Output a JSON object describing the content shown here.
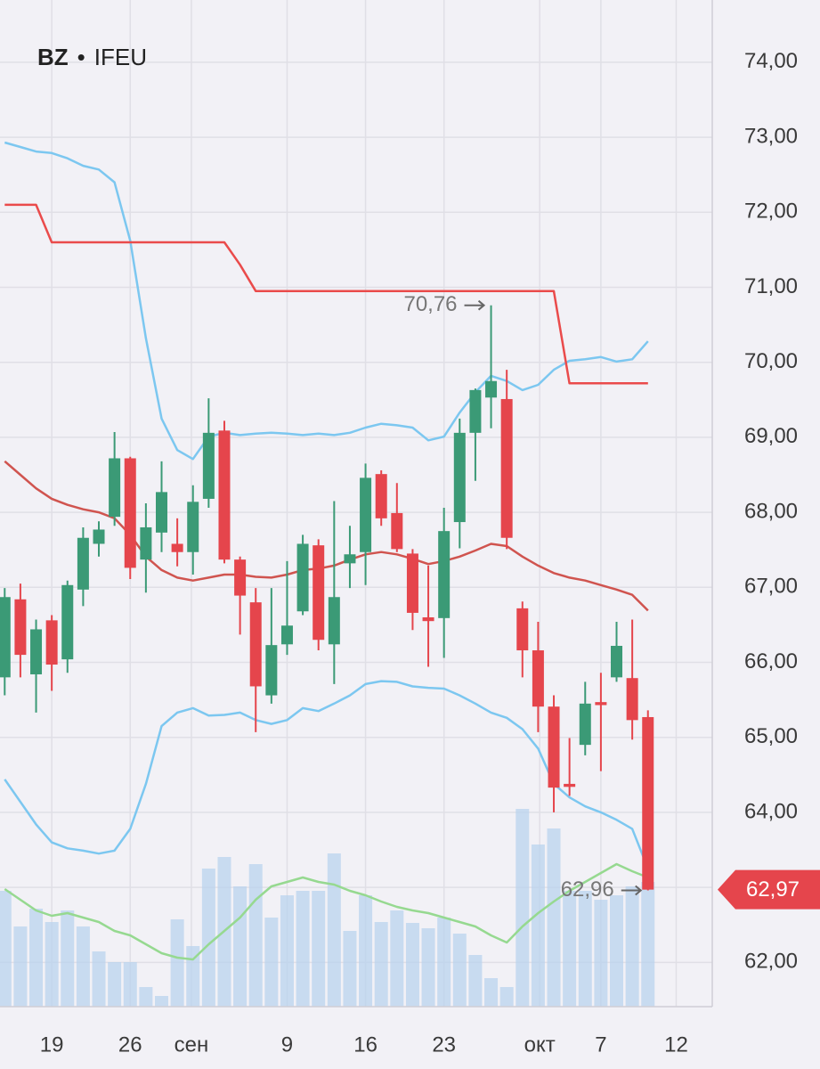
{
  "chart_data": {
    "type": "candlestick",
    "title_symbol": "BZ",
    "title_separator": "•",
    "title_exchange": "IFEU",
    "x": [
      0,
      1,
      2,
      3,
      4,
      5,
      6,
      7,
      8,
      9,
      10,
      11,
      12,
      13,
      14,
      15,
      16,
      17,
      18,
      19,
      20,
      21,
      22,
      23,
      24,
      25,
      26,
      27,
      28,
      29,
      30,
      31,
      32,
      33,
      34,
      35,
      36,
      37,
      38,
      39,
      40,
      41
    ],
    "open": [
      65.8,
      66.84,
      65.84,
      66.56,
      66.04,
      66.97,
      67.58,
      67.94,
      68.72,
      67.37,
      67.73,
      67.58,
      67.47,
      68.18,
      69.09,
      67.37,
      66.8,
      65.56,
      66.24,
      66.68,
      67.56,
      66.24,
      67.32,
      67.47,
      68.51,
      67.99,
      67.45,
      66.6,
      66.59,
      67.87,
      69.06,
      69.53,
      69.51,
      66.72,
      66.16,
      65.41,
      64.38,
      64.9,
      65.47,
      65.8,
      65.79,
      65.27
    ],
    "high": [
      66.99,
      67.05,
      66.57,
      66.63,
      67.09,
      67.8,
      67.88,
      69.07,
      68.74,
      68.12,
      68.68,
      67.92,
      68.36,
      69.52,
      69.22,
      67.41,
      66.99,
      66.99,
      67.35,
      67.7,
      67.64,
      68.15,
      67.82,
      68.65,
      68.56,
      68.39,
      67.51,
      67.29,
      68.06,
      69.25,
      69.65,
      70.76,
      69.9,
      66.81,
      66.54,
      65.56,
      64.99,
      65.74,
      65.86,
      66.54,
      66.57,
      65.36
    ],
    "low": [
      65.56,
      65.8,
      65.33,
      65.62,
      65.86,
      66.75,
      67.41,
      67.82,
      67.11,
      66.93,
      67.47,
      67.28,
      67.17,
      68.06,
      67.32,
      66.37,
      65.07,
      65.45,
      66.1,
      66.63,
      66.16,
      65.71,
      66.99,
      67.03,
      67.82,
      67.47,
      66.43,
      65.94,
      66.06,
      67.52,
      68.42,
      69.12,
      67.51,
      65.8,
      65.07,
      64.0,
      64.22,
      64.76,
      64.55,
      65.74,
      64.97,
      62.96
    ],
    "close": [
      66.87,
      66.1,
      66.44,
      65.97,
      67.03,
      67.66,
      67.77,
      68.72,
      67.26,
      67.8,
      68.27,
      67.47,
      68.14,
      69.06,
      67.37,
      66.89,
      65.68,
      66.23,
      66.49,
      67.58,
      66.3,
      66.87,
      67.44,
      68.46,
      67.92,
      67.51,
      66.66,
      66.55,
      67.75,
      69.06,
      69.63,
      69.75,
      67.66,
      66.16,
      65.41,
      64.33,
      64.34,
      65.45,
      65.43,
      66.22,
      65.23,
      62.97
    ],
    "up_color": "#3b9a76",
    "down_color": "#e5454c",
    "series": [
      {
        "color": "#7cc7f0",
        "values": [
          72.93,
          72.87,
          72.81,
          72.79,
          72.72,
          72.62,
          72.57,
          72.4,
          71.62,
          70.32,
          69.25,
          68.83,
          68.71,
          69.01,
          69.06,
          69.03,
          69.05,
          69.06,
          69.05,
          69.03,
          69.05,
          69.03,
          69.06,
          69.13,
          69.18,
          69.16,
          69.13,
          68.96,
          69.01,
          69.33,
          69.6,
          69.82,
          69.75,
          69.63,
          69.7,
          69.9,
          70.02,
          70.04,
          70.07,
          70.01,
          70.04,
          70.28
        ]
      },
      {
        "color": "#7cc7f0",
        "values": [
          64.44,
          64.14,
          63.84,
          63.6,
          63.52,
          63.49,
          63.45,
          63.49,
          63.78,
          64.38,
          65.15,
          65.33,
          65.39,
          65.29,
          65.3,
          65.33,
          65.23,
          65.18,
          65.23,
          65.39,
          65.35,
          65.45,
          65.56,
          65.71,
          65.75,
          65.74,
          65.68,
          65.66,
          65.65,
          65.56,
          65.45,
          65.33,
          65.26,
          65.11,
          64.85,
          64.38,
          64.2,
          64.08,
          64.0,
          63.9,
          63.78,
          63.25
        ]
      },
      {
        "color": "#d0544f",
        "values": [
          68.68,
          68.5,
          68.32,
          68.18,
          68.1,
          68.04,
          68.0,
          67.92,
          67.7,
          67.41,
          67.23,
          67.13,
          67.09,
          67.13,
          67.17,
          67.17,
          67.14,
          67.13,
          67.17,
          67.23,
          67.25,
          67.29,
          67.37,
          67.44,
          67.47,
          67.44,
          67.38,
          67.31,
          67.35,
          67.41,
          67.49,
          67.58,
          67.55,
          67.41,
          67.29,
          67.19,
          67.13,
          67.09,
          67.03,
          66.97,
          66.9,
          66.69
        ]
      },
      {
        "color": "#ea4b4b",
        "values": [
          72.1,
          72.1,
          72.1,
          71.6,
          71.6,
          71.6,
          71.6,
          71.6,
          71.6,
          71.6,
          71.6,
          71.6,
          71.6,
          71.6,
          71.6,
          71.3,
          70.95,
          70.95,
          70.95,
          70.95,
          70.95,
          70.95,
          70.95,
          70.95,
          70.95,
          70.95,
          70.95,
          70.95,
          70.95,
          70.95,
          70.95,
          70.95,
          70.95,
          70.95,
          70.95,
          70.95,
          69.72,
          69.72,
          69.72,
          69.72,
          69.72,
          69.72
        ]
      }
    ],
    "volume": {
      "color": "#b9d3ee",
      "values": [
        130,
        90,
        110,
        95,
        108,
        90,
        62,
        50,
        50,
        22,
        12,
        98,
        68,
        155,
        168,
        135,
        160,
        100,
        125,
        130,
        130,
        172,
        85,
        125,
        95,
        108,
        94,
        88,
        100,
        82,
        58,
        32,
        22,
        222,
        182,
        200,
        130,
        130,
        120,
        125,
        135,
        140
      ]
    },
    "volume_ma": {
      "color": "#96d990",
      "values": [
        132,
        120,
        108,
        102,
        105,
        100,
        95,
        85,
        80,
        70,
        60,
        55,
        53,
        70,
        85,
        100,
        120,
        135,
        140,
        145,
        140,
        137,
        130,
        125,
        118,
        112,
        108,
        105,
        100,
        95,
        90,
        80,
        72,
        90,
        105,
        118,
        130,
        140,
        150,
        160,
        152,
        145
      ]
    },
    "vlim": [
      0,
      240
    ],
    "xlim": [
      -0.3,
      45.1
    ],
    "xticks": [
      {
        "value": 3,
        "label": "19"
      },
      {
        "value": 8,
        "label": "26"
      },
      {
        "value": 11.9,
        "label": "сен"
      },
      {
        "value": 18,
        "label": "9"
      },
      {
        "value": 23,
        "label": "16"
      },
      {
        "value": 28,
        "label": "23"
      },
      {
        "value": 34.1,
        "label": "окт"
      },
      {
        "value": 38,
        "label": "7"
      },
      {
        "value": 42.8,
        "label": "12"
      }
    ],
    "ylim": [
      61.41,
      74.83
    ],
    "yticks": [
      {
        "value": 62,
        "label": "62,00"
      },
      {
        "value": 63,
        "label": "63,00"
      },
      {
        "value": 64,
        "label": "64,00"
      },
      {
        "value": 65,
        "label": "65,00"
      },
      {
        "value": 66,
        "label": "66,00"
      },
      {
        "value": 67,
        "label": "67,00"
      },
      {
        "value": 68,
        "label": "68,00"
      },
      {
        "value": 69,
        "label": "69,00"
      },
      {
        "value": 70,
        "label": "70,00"
      },
      {
        "value": 71,
        "label": "71,00"
      },
      {
        "value": 72,
        "label": "72,00"
      },
      {
        "value": 73,
        "label": "73,00"
      },
      {
        "value": 74,
        "label": "74,00"
      }
    ],
    "grid": true,
    "annotations": [
      {
        "text": "70,76",
        "value": 70.76,
        "x": 31
      },
      {
        "text": "62,96",
        "value": 62.96,
        "x": 41
      }
    ],
    "price_tag": {
      "label": "62,97",
      "value": 62.97,
      "color": "#e5454c"
    }
  }
}
